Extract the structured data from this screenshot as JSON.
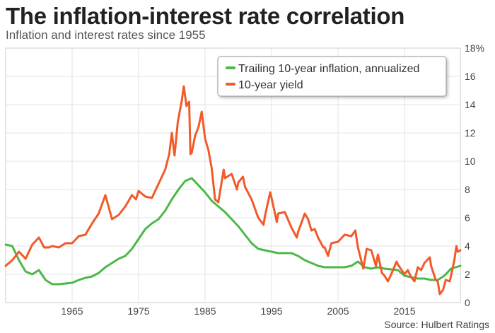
{
  "title": "The inflation-interest rate correlation",
  "subtitle": "Inflation and interest rates since 1955",
  "source": "Source: Hulbert Ratings",
  "chart_data": {
    "type": "line",
    "xlabel": "",
    "ylabel": "",
    "xlim": [
      1955.0,
      2023.4
    ],
    "ylim": [
      0,
      18
    ],
    "x_ticks": [
      1965,
      1975,
      1985,
      1995,
      2005,
      2015
    ],
    "x_tick_labels": [
      "1965",
      "1975",
      "1985",
      "1995",
      "2005",
      "2015"
    ],
    "y_ticks": [
      0,
      2,
      4,
      6,
      8,
      10,
      12,
      14,
      16,
      18
    ],
    "y_tick_labels": [
      "0",
      "2",
      "4",
      "6",
      "8",
      "10",
      "12",
      "14",
      "16",
      "18%"
    ],
    "grid": true,
    "legend_position": "top-right",
    "series": [
      {
        "name": "Trailing 10-year inflation, annualized",
        "color": "#4cb848",
        "points": [
          [
            1955.0,
            4.1
          ],
          [
            1956.0,
            4.0
          ],
          [
            1957.0,
            3.0
          ],
          [
            1958.0,
            2.2
          ],
          [
            1959.0,
            2.0
          ],
          [
            1960.0,
            2.3
          ],
          [
            1961.0,
            1.6
          ],
          [
            1962.0,
            1.3
          ],
          [
            1963.0,
            1.3
          ],
          [
            1964.0,
            1.35
          ],
          [
            1965.0,
            1.4
          ],
          [
            1966.0,
            1.6
          ],
          [
            1967.0,
            1.75
          ],
          [
            1968.0,
            1.85
          ],
          [
            1969.0,
            2.1
          ],
          [
            1970.0,
            2.5
          ],
          [
            1971.0,
            2.8
          ],
          [
            1972.0,
            3.1
          ],
          [
            1973.0,
            3.3
          ],
          [
            1974.0,
            3.8
          ],
          [
            1975.0,
            4.5
          ],
          [
            1976.0,
            5.2
          ],
          [
            1977.0,
            5.6
          ],
          [
            1978.0,
            5.9
          ],
          [
            1979.0,
            6.5
          ],
          [
            1980.0,
            7.3
          ],
          [
            1981.0,
            8.0
          ],
          [
            1982.0,
            8.6
          ],
          [
            1983.0,
            8.8
          ],
          [
            1984.0,
            8.3
          ],
          [
            1985.0,
            7.8
          ],
          [
            1986.0,
            7.2
          ],
          [
            1987.0,
            6.8
          ],
          [
            1988.0,
            6.4
          ],
          [
            1989.0,
            5.9
          ],
          [
            1990.0,
            5.4
          ],
          [
            1991.0,
            4.8
          ],
          [
            1992.0,
            4.2
          ],
          [
            1993.0,
            3.8
          ],
          [
            1994.0,
            3.7
          ],
          [
            1995.0,
            3.6
          ],
          [
            1996.0,
            3.5
          ],
          [
            1997.0,
            3.5
          ],
          [
            1998.0,
            3.5
          ],
          [
            1999.0,
            3.3
          ],
          [
            2000.0,
            3.0
          ],
          [
            2001.0,
            2.8
          ],
          [
            2002.0,
            2.6
          ],
          [
            2003.0,
            2.5
          ],
          [
            2004.0,
            2.5
          ],
          [
            2005.0,
            2.5
          ],
          [
            2006.0,
            2.5
          ],
          [
            2007.0,
            2.6
          ],
          [
            2008.0,
            2.9
          ],
          [
            2009.0,
            2.5
          ],
          [
            2010.0,
            2.4
          ],
          [
            2011.0,
            2.5
          ],
          [
            2012.0,
            2.4
          ],
          [
            2013.0,
            2.35
          ],
          [
            2014.0,
            2.3
          ],
          [
            2015.0,
            1.9
          ],
          [
            2016.0,
            1.8
          ],
          [
            2017.0,
            1.7
          ],
          [
            2018.0,
            1.7
          ],
          [
            2019.0,
            1.6
          ],
          [
            2020.0,
            1.6
          ],
          [
            2021.0,
            1.9
          ],
          [
            2022.0,
            2.4
          ],
          [
            2023.4,
            2.6
          ]
        ]
      },
      {
        "name": "10-year yield",
        "color": "#f15a29",
        "points": [
          [
            1955.0,
            2.6
          ],
          [
            1956.0,
            3.0
          ],
          [
            1957.0,
            3.6
          ],
          [
            1958.0,
            3.1
          ],
          [
            1959.0,
            4.1
          ],
          [
            1960.0,
            4.6
          ],
          [
            1960.8,
            3.9
          ],
          [
            1961.5,
            3.9
          ],
          [
            1962.0,
            4.0
          ],
          [
            1963.0,
            3.9
          ],
          [
            1964.0,
            4.2
          ],
          [
            1965.0,
            4.2
          ],
          [
            1966.0,
            4.7
          ],
          [
            1967.0,
            4.8
          ],
          [
            1968.0,
            5.6
          ],
          [
            1969.0,
            6.3
          ],
          [
            1970.0,
            7.6
          ],
          [
            1970.6,
            6.6
          ],
          [
            1971.0,
            5.9
          ],
          [
            1972.0,
            6.2
          ],
          [
            1973.0,
            6.8
          ],
          [
            1974.0,
            7.6
          ],
          [
            1974.6,
            7.3
          ],
          [
            1975.0,
            7.9
          ],
          [
            1976.0,
            7.5
          ],
          [
            1977.0,
            7.4
          ],
          [
            1978.0,
            8.4
          ],
          [
            1979.0,
            9.4
          ],
          [
            1979.6,
            10.5
          ],
          [
            1980.0,
            12.0
          ],
          [
            1980.4,
            10.4
          ],
          [
            1980.9,
            12.8
          ],
          [
            1981.5,
            14.3
          ],
          [
            1981.8,
            15.3
          ],
          [
            1982.2,
            13.9
          ],
          [
            1982.6,
            14.2
          ],
          [
            1982.8,
            10.5
          ],
          [
            1983.0,
            10.6
          ],
          [
            1983.5,
            11.8
          ],
          [
            1984.0,
            12.4
          ],
          [
            1984.5,
            13.5
          ],
          [
            1985.0,
            11.6
          ],
          [
            1985.5,
            10.8
          ],
          [
            1986.0,
            9.5
          ],
          [
            1986.5,
            7.3
          ],
          [
            1987.0,
            7.1
          ],
          [
            1987.8,
            9.4
          ],
          [
            1988.0,
            8.8
          ],
          [
            1989.0,
            9.1
          ],
          [
            1989.8,
            8.0
          ],
          [
            1990.0,
            8.5
          ],
          [
            1990.7,
            8.9
          ],
          [
            1991.0,
            8.2
          ],
          [
            1992.0,
            7.3
          ],
          [
            1993.0,
            6.0
          ],
          [
            1993.8,
            5.5
          ],
          [
            1994.0,
            6.1
          ],
          [
            1994.8,
            7.8
          ],
          [
            1995.0,
            7.4
          ],
          [
            1995.8,
            5.7
          ],
          [
            1996.0,
            6.3
          ],
          [
            1997.0,
            6.4
          ],
          [
            1998.0,
            5.3
          ],
          [
            1998.8,
            4.6
          ],
          [
            1999.0,
            5.0
          ],
          [
            2000.0,
            6.3
          ],
          [
            2000.5,
            5.9
          ],
          [
            2001.0,
            5.1
          ],
          [
            2001.5,
            5.2
          ],
          [
            2002.0,
            4.6
          ],
          [
            2002.8,
            3.9
          ],
          [
            2003.0,
            3.9
          ],
          [
            2003.5,
            3.3
          ],
          [
            2004.0,
            4.2
          ],
          [
            2005.0,
            4.3
          ],
          [
            2006.0,
            4.8
          ],
          [
            2007.0,
            4.7
          ],
          [
            2007.6,
            5.1
          ],
          [
            2008.0,
            3.9
          ],
          [
            2008.8,
            2.4
          ],
          [
            2009.3,
            3.8
          ],
          [
            2010.0,
            3.7
          ],
          [
            2010.7,
            2.6
          ],
          [
            2011.0,
            3.4
          ],
          [
            2011.6,
            2.1
          ],
          [
            2012.0,
            1.9
          ],
          [
            2012.5,
            1.5
          ],
          [
            2013.0,
            2.0
          ],
          [
            2013.8,
            2.9
          ],
          [
            2014.0,
            2.7
          ],
          [
            2015.0,
            2.0
          ],
          [
            2015.5,
            2.3
          ],
          [
            2016.0,
            1.8
          ],
          [
            2016.5,
            1.5
          ],
          [
            2017.0,
            2.5
          ],
          [
            2017.5,
            2.3
          ],
          [
            2018.0,
            2.8
          ],
          [
            2018.8,
            3.2
          ],
          [
            2019.0,
            2.6
          ],
          [
            2019.7,
            1.6
          ],
          [
            2020.0,
            1.5
          ],
          [
            2020.3,
            0.6
          ],
          [
            2020.8,
            0.9
          ],
          [
            2021.2,
            1.6
          ],
          [
            2021.8,
            1.5
          ],
          [
            2022.0,
            1.9
          ],
          [
            2022.5,
            3.0
          ],
          [
            2022.8,
            4.0
          ],
          [
            2023.0,
            3.6
          ],
          [
            2023.4,
            3.7
          ]
        ]
      }
    ]
  }
}
